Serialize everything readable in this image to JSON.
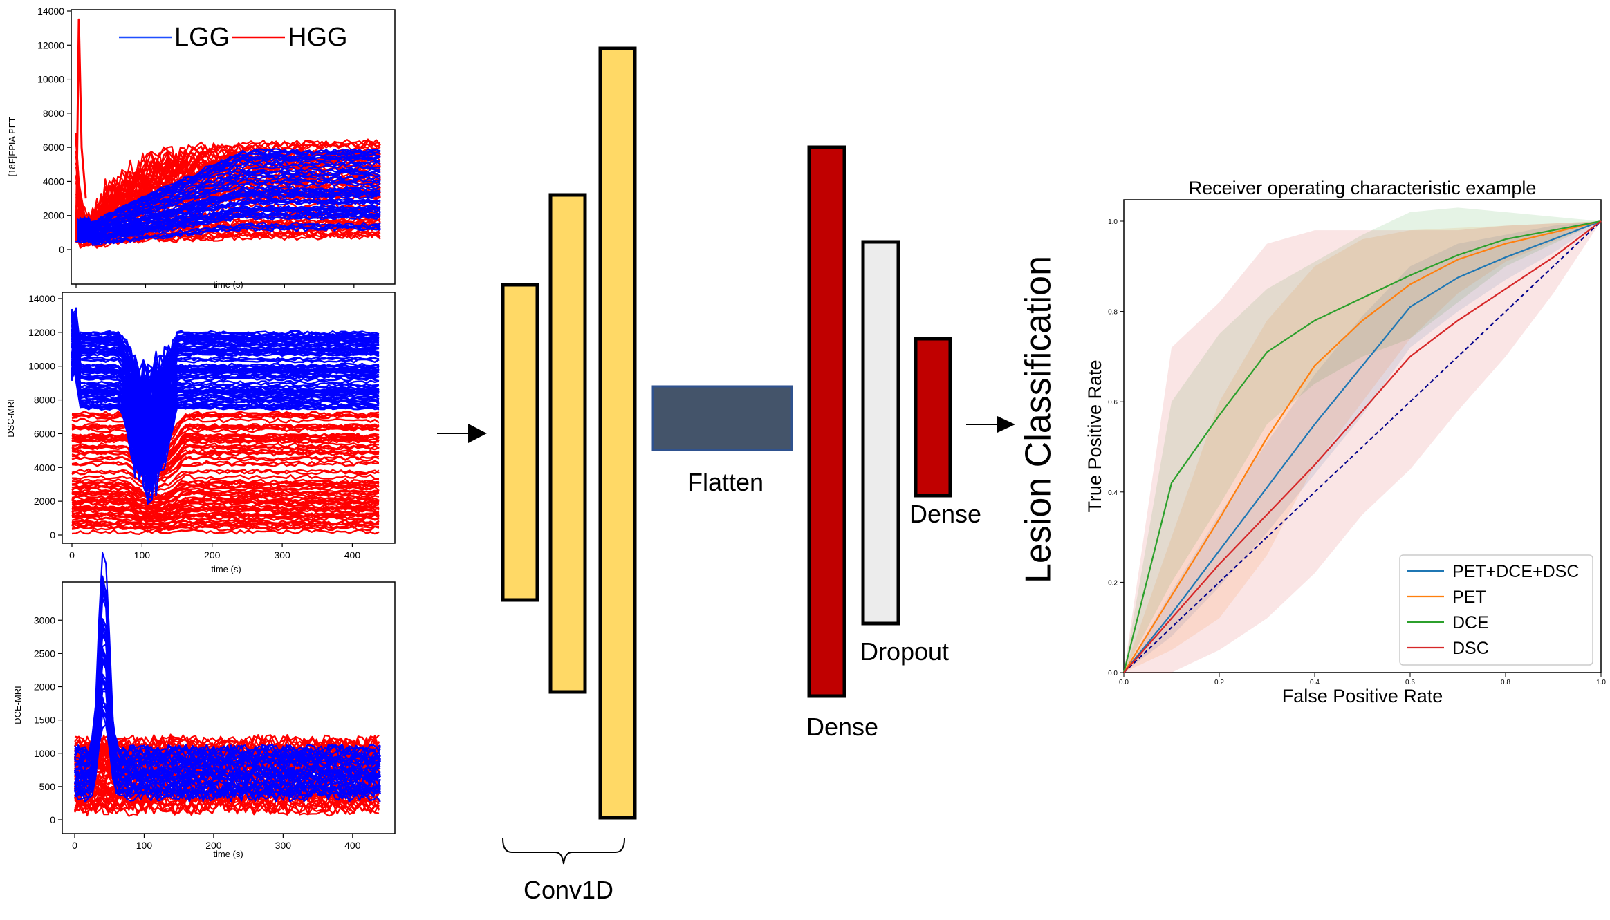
{
  "signal_panels": [
    {
      "ylabel": "[18F]FPIA PET",
      "xlabel": "time (s)",
      "x_ticks": [
        "0",
        "100",
        "200",
        "300",
        "400"
      ],
      "x_range": [
        0,
        440
      ],
      "y_ticks": [
        "0",
        "2000",
        "4000",
        "6000",
        "8000",
        "10000",
        "12000",
        "14000"
      ],
      "y_range": [
        0,
        14000
      ],
      "legend": [
        "LGG",
        "HGG"
      ],
      "series_colors": {
        "LGG": "#0000ff",
        "HGG": "#ff0000"
      }
    },
    {
      "ylabel": "DSC-MRI",
      "xlabel": "time (s)",
      "x_ticks": [
        "0",
        "100",
        "200",
        "300",
        "400"
      ],
      "x_range": [
        0,
        440
      ],
      "y_ticks": [
        "0",
        "2000",
        "4000",
        "6000",
        "8000",
        "10000",
        "12000",
        "14000"
      ],
      "y_range": [
        0,
        14000
      ]
    },
    {
      "ylabel": "DCE-MRI",
      "xlabel": "time (s)",
      "x_ticks": [
        "0",
        "100",
        "200",
        "300",
        "400"
      ],
      "x_range": [
        0,
        440
      ],
      "y_ticks": [
        "0",
        "500",
        "1000",
        "1500",
        "2000",
        "2500",
        "3000"
      ],
      "y_range": [
        0,
        3200
      ]
    }
  ],
  "network": {
    "conv_label": "Conv1D",
    "flatten_label": "Flatten",
    "dense1_label": "Dense",
    "dropout_label": "Dropout",
    "dense2_label": "Dense",
    "output_label": "Lesion Classification",
    "colors": {
      "conv": "#ffd966",
      "flatten": "#44546a",
      "dense": "#c00000",
      "dropout": "#ececec"
    }
  },
  "chart_data": {
    "type": "line",
    "title": "Receiver operating characteristic example",
    "xlabel": "False Positive Rate",
    "ylabel": "True Positive Rate",
    "xlim": [
      0,
      1
    ],
    "ylim": [
      0,
      1
    ],
    "x_ticks": [
      "0.0",
      "0.2",
      "0.4",
      "0.6",
      "0.8",
      "1.0"
    ],
    "y_ticks": [
      "0.0",
      "0.2",
      "0.4",
      "0.6",
      "0.8",
      "1.0"
    ],
    "legend_position": "lower-right",
    "x": [
      0,
      0.1,
      0.2,
      0.3,
      0.4,
      0.5,
      0.6,
      0.7,
      0.8,
      0.9,
      1.0
    ],
    "series": [
      {
        "name": "PET+DCE+DSC",
        "color": "#1f77b4",
        "values": [
          0,
          0.13,
          0.27,
          0.41,
          0.55,
          0.68,
          0.81,
          0.875,
          0.92,
          0.96,
          1.0
        ],
        "upper": [
          0,
          0.18,
          0.35,
          0.51,
          0.66,
          0.79,
          0.9,
          0.95,
          0.97,
          0.99,
          1.0
        ],
        "lower": [
          0,
          0.08,
          0.19,
          0.31,
          0.44,
          0.57,
          0.72,
          0.8,
          0.87,
          0.93,
          1.0
        ]
      },
      {
        "name": "PET",
        "color": "#ff7f0e",
        "values": [
          0,
          0.17,
          0.34,
          0.52,
          0.68,
          0.78,
          0.86,
          0.915,
          0.95,
          0.975,
          1.0
        ],
        "upper": [
          0,
          0.3,
          0.6,
          0.78,
          0.9,
          0.96,
          0.98,
          0.985,
          0.99,
          0.995,
          1.0
        ],
        "lower": [
          0,
          0.05,
          0.12,
          0.26,
          0.46,
          0.6,
          0.74,
          0.84,
          0.91,
          0.955,
          1.0
        ]
      },
      {
        "name": "DCE",
        "color": "#2ca02c",
        "values": [
          0,
          0.42,
          0.57,
          0.71,
          0.78,
          0.83,
          0.88,
          0.925,
          0.96,
          0.98,
          1.0
        ],
        "upper": [
          0,
          0.6,
          0.75,
          0.85,
          0.91,
          0.97,
          1.02,
          1.03,
          1.02,
          1.01,
          1.0
        ],
        "lower": [
          0,
          0.2,
          0.37,
          0.55,
          0.64,
          0.7,
          0.74,
          0.82,
          0.9,
          0.95,
          1.0
        ]
      },
      {
        "name": "DSC",
        "color": "#d62728",
        "values": [
          0,
          0.12,
          0.24,
          0.35,
          0.46,
          0.58,
          0.7,
          0.78,
          0.85,
          0.92,
          1.0
        ],
        "upper": [
          0,
          0.72,
          0.82,
          0.95,
          0.98,
          0.98,
          0.98,
          0.98,
          0.99,
          0.995,
          1.0
        ],
        "lower": [
          0,
          0.0,
          0.05,
          0.12,
          0.22,
          0.35,
          0.45,
          0.58,
          0.7,
          0.84,
          1.0
        ]
      }
    ],
    "reference_line": {
      "values": [
        0,
        1
      ],
      "color": "#00008b",
      "style": "dashed"
    }
  }
}
